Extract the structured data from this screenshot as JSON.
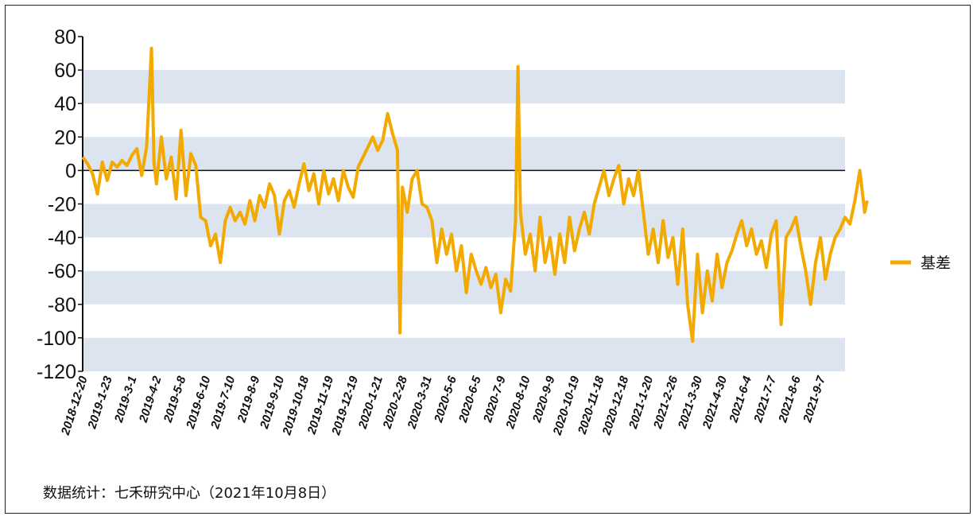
{
  "source_note": "数据统计：七禾研究中心（2021年10月8日）",
  "chart_data": {
    "type": "line",
    "title": "",
    "xlabel": "",
    "ylabel": "",
    "ylim": [
      -120,
      80
    ],
    "yticks": [
      80,
      60,
      40,
      20,
      0,
      -20,
      -40,
      -60,
      -80,
      -100,
      -120
    ],
    "banding": "alternating light blue horizontal bands",
    "legend_position": "right",
    "x_tick_labels": [
      "2018-12-20",
      "2019-1-23",
      "2019-3-1",
      "2019-4-2",
      "2019-5-8",
      "2019-6-10",
      "2019-7-10",
      "2019-8-9",
      "2019-9-10",
      "2019-10-18",
      "2019-11-19",
      "2019-12-19",
      "2020-1-21",
      "2020-2-28",
      "2020-3-31",
      "2020-5-6",
      "2020-6-5",
      "2020-7-9",
      "2020-8-10",
      "2020-9-9",
      "2020-10-19",
      "2020-11-18",
      "2020-12-18",
      "2021-1-20",
      "2021-2-26",
      "2021-3-30",
      "2021-4-30",
      "2021-6-4",
      "2021-7-7",
      "2021-8-6",
      "2021-9-7"
    ],
    "series": [
      {
        "name": "基差",
        "color": "#f2a900",
        "values": [
          [
            0,
            8
          ],
          [
            0.2,
            4
          ],
          [
            0.4,
            -2
          ],
          [
            0.6,
            -14
          ],
          [
            0.8,
            5
          ],
          [
            1.0,
            -6
          ],
          [
            1.2,
            5
          ],
          [
            1.4,
            2
          ],
          [
            1.6,
            6
          ],
          [
            1.8,
            3
          ],
          [
            2.0,
            9
          ],
          [
            2.2,
            13
          ],
          [
            2.4,
            -3
          ],
          [
            2.6,
            14
          ],
          [
            2.8,
            73
          ],
          [
            2.9,
            5
          ],
          [
            3.0,
            -8
          ],
          [
            3.2,
            20
          ],
          [
            3.4,
            -5
          ],
          [
            3.6,
            8
          ],
          [
            3.8,
            -17
          ],
          [
            4.0,
            24
          ],
          [
            4.2,
            -15
          ],
          [
            4.4,
            10
          ],
          [
            4.6,
            3
          ],
          [
            4.8,
            -28
          ],
          [
            5.0,
            -30
          ],
          [
            5.2,
            -45
          ],
          [
            5.4,
            -38
          ],
          [
            5.6,
            -55
          ],
          [
            5.8,
            -30
          ],
          [
            6.0,
            -22
          ],
          [
            6.2,
            -30
          ],
          [
            6.4,
            -25
          ],
          [
            6.6,
            -32
          ],
          [
            6.8,
            -18
          ],
          [
            7.0,
            -30
          ],
          [
            7.2,
            -15
          ],
          [
            7.4,
            -22
          ],
          [
            7.6,
            -8
          ],
          [
            7.8,
            -15
          ],
          [
            8.0,
            -38
          ],
          [
            8.2,
            -18
          ],
          [
            8.4,
            -12
          ],
          [
            8.6,
            -22
          ],
          [
            8.8,
            -8
          ],
          [
            9.0,
            4
          ],
          [
            9.2,
            -12
          ],
          [
            9.4,
            -2
          ],
          [
            9.6,
            -20
          ],
          [
            9.8,
            0
          ],
          [
            10.0,
            -14
          ],
          [
            10.2,
            -5
          ],
          [
            10.4,
            -18
          ],
          [
            10.6,
            0
          ],
          [
            10.8,
            -10
          ],
          [
            11.0,
            -16
          ],
          [
            11.2,
            2
          ],
          [
            11.4,
            8
          ],
          [
            11.6,
            14
          ],
          [
            11.8,
            20
          ],
          [
            12.0,
            12
          ],
          [
            12.2,
            18
          ],
          [
            12.4,
            34
          ],
          [
            12.6,
            22
          ],
          [
            12.8,
            12
          ],
          [
            12.9,
            -97
          ],
          [
            13.0,
            -10
          ],
          [
            13.2,
            -25
          ],
          [
            13.4,
            -5
          ],
          [
            13.6,
            0
          ],
          [
            13.8,
            -20
          ],
          [
            14.0,
            -22
          ],
          [
            14.2,
            -30
          ],
          [
            14.4,
            -55
          ],
          [
            14.6,
            -35
          ],
          [
            14.8,
            -50
          ],
          [
            15.0,
            -38
          ],
          [
            15.2,
            -60
          ],
          [
            15.4,
            -45
          ],
          [
            15.6,
            -73
          ],
          [
            15.8,
            -50
          ],
          [
            16.0,
            -60
          ],
          [
            16.2,
            -68
          ],
          [
            16.4,
            -58
          ],
          [
            16.6,
            -70
          ],
          [
            16.8,
            -62
          ],
          [
            17.0,
            -85
          ],
          [
            17.2,
            -65
          ],
          [
            17.4,
            -72
          ],
          [
            17.6,
            -30
          ],
          [
            17.7,
            62
          ],
          [
            17.8,
            -25
          ],
          [
            18.0,
            -50
          ],
          [
            18.2,
            -38
          ],
          [
            18.4,
            -60
          ],
          [
            18.6,
            -28
          ],
          [
            18.8,
            -55
          ],
          [
            19.0,
            -40
          ],
          [
            19.2,
            -62
          ],
          [
            19.4,
            -38
          ],
          [
            19.6,
            -55
          ],
          [
            19.8,
            -28
          ],
          [
            20.0,
            -48
          ],
          [
            20.2,
            -35
          ],
          [
            20.4,
            -25
          ],
          [
            20.6,
            -38
          ],
          [
            20.8,
            -20
          ],
          [
            21.0,
            -10
          ],
          [
            21.2,
            0
          ],
          [
            21.4,
            -15
          ],
          [
            21.6,
            -5
          ],
          [
            21.8,
            3
          ],
          [
            22.0,
            -20
          ],
          [
            22.2,
            -5
          ],
          [
            22.4,
            -15
          ],
          [
            22.6,
            0
          ],
          [
            22.8,
            -25
          ],
          [
            23.0,
            -50
          ],
          [
            23.2,
            -35
          ],
          [
            23.4,
            -55
          ],
          [
            23.6,
            -30
          ],
          [
            23.8,
            -52
          ],
          [
            24.0,
            -40
          ],
          [
            24.2,
            -68
          ],
          [
            24.4,
            -35
          ],
          [
            24.6,
            -80
          ],
          [
            24.8,
            -102
          ],
          [
            25.0,
            -50
          ],
          [
            25.2,
            -85
          ],
          [
            25.4,
            -60
          ],
          [
            25.6,
            -78
          ],
          [
            25.8,
            -50
          ],
          [
            26.0,
            -70
          ],
          [
            26.2,
            -55
          ],
          [
            26.4,
            -48
          ],
          [
            26.6,
            -38
          ],
          [
            26.8,
            -30
          ],
          [
            27.0,
            -45
          ],
          [
            27.2,
            -35
          ],
          [
            27.4,
            -50
          ],
          [
            27.6,
            -42
          ],
          [
            27.8,
            -58
          ],
          [
            28.0,
            -38
          ],
          [
            28.2,
            -30
          ],
          [
            28.4,
            -92
          ],
          [
            28.6,
            -40
          ],
          [
            28.8,
            -35
          ],
          [
            29.0,
            -28
          ],
          [
            29.2,
            -45
          ],
          [
            29.4,
            -60
          ],
          [
            29.6,
            -80
          ],
          [
            29.8,
            -55
          ],
          [
            30.0,
            -40
          ],
          [
            30.2,
            -65
          ],
          [
            30.4,
            -50
          ],
          [
            30.6,
            -40
          ],
          [
            30.8,
            -35
          ],
          [
            31.0,
            -28
          ],
          [
            31.2,
            -32
          ],
          [
            31.4,
            -18
          ],
          [
            31.6,
            0
          ],
          [
            31.8,
            -25
          ],
          [
            31.9,
            -18
          ]
        ]
      }
    ]
  }
}
